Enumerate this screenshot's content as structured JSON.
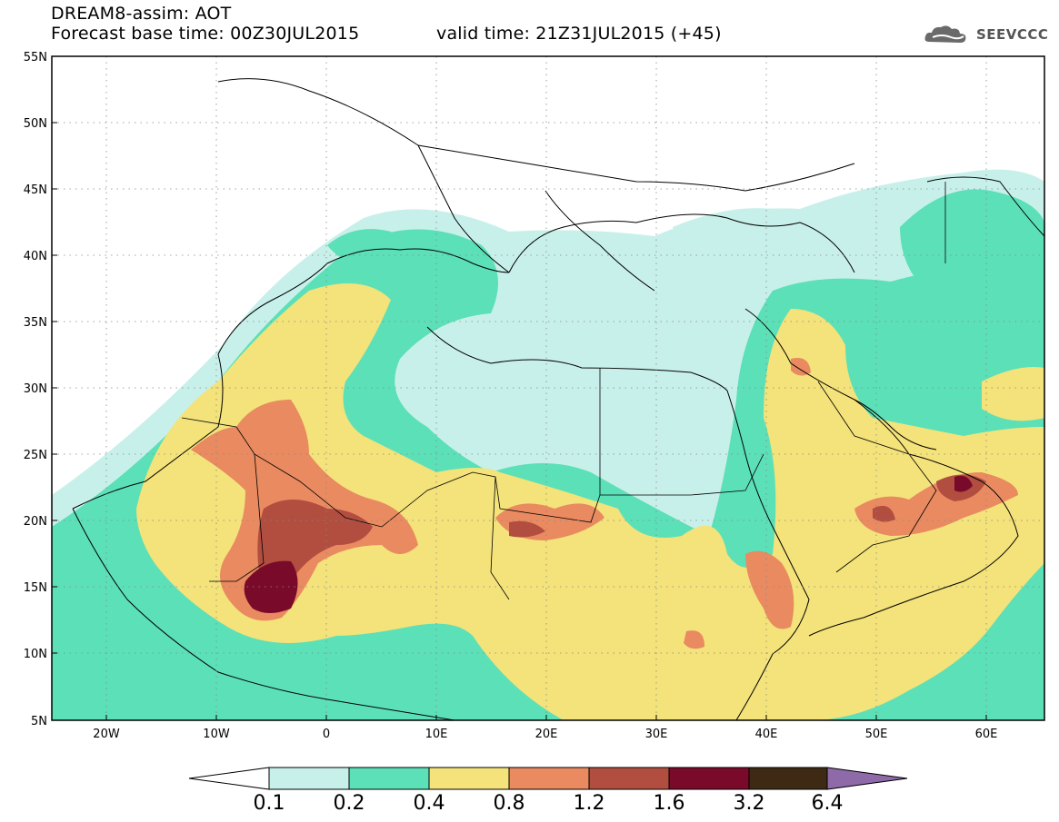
{
  "header": {
    "line1": "DREAM8-assim: AOT",
    "line2": "Forecast base time: 00Z30JUL2015",
    "line3": "valid time: 21Z31JUL2015 (+45)"
  },
  "logo": {
    "text": "SEEVCCC",
    "icon": "cloud-icon"
  },
  "map": {
    "lat_labels": [
      "55N",
      "50N",
      "45N",
      "40N",
      "35N",
      "30N",
      "25N",
      "20N",
      "15N",
      "10N",
      "5N"
    ],
    "lon_labels": [
      "20W",
      "10W",
      "0",
      "10E",
      "20E",
      "30E",
      "40E",
      "50E",
      "60E"
    ]
  },
  "colorbar": {
    "labels": [
      "0.1",
      "0.2",
      "0.4",
      "0.8",
      "1.2",
      "1.6",
      "3.2",
      "6.4"
    ],
    "colors": [
      "#ffffff",
      "#c8f0ea",
      "#5ce0b8",
      "#f4e27a",
      "#e98a60",
      "#b14e40",
      "#7a0a2a",
      "#3e2a14",
      "#8e6aa8"
    ]
  }
}
